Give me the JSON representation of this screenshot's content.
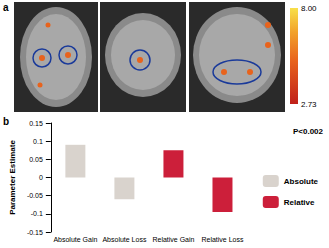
{
  "panel_a": {
    "panel_label": "a",
    "colorbar": {
      "range": [
        2.73,
        8
      ],
      "ticks": [
        {
          "value": 8,
          "label": "8.00"
        },
        2.73
      ]
    }
  },
  "chart_data": {
    "type": "bar",
    "panel_label": "b",
    "categories": [
      "Absolute Gain",
      "Absolute Loss",
      "Relative Gain",
      "Relative Loss"
    ],
    "series": [
      {
        "name": "Absolute",
        "color": "#d9d3cd",
        "values": [
          0.09,
          -0.06,
          null,
          null
        ]
      },
      {
        "name": "Relative",
        "color": "#cc1f3a",
        "values": [
          null,
          null,
          0.075,
          -0.095
        ]
      }
    ],
    "y_label": "Parameter Estimate",
    "annotation": "P<0.002",
    "ylim": [
      -0.15,
      0.15
    ],
    "yticks": [
      -0.15,
      -0.1,
      -0.05,
      0,
      0.05,
      0.1,
      0.15
    ],
    "legend": "right",
    "grid": false
  }
}
